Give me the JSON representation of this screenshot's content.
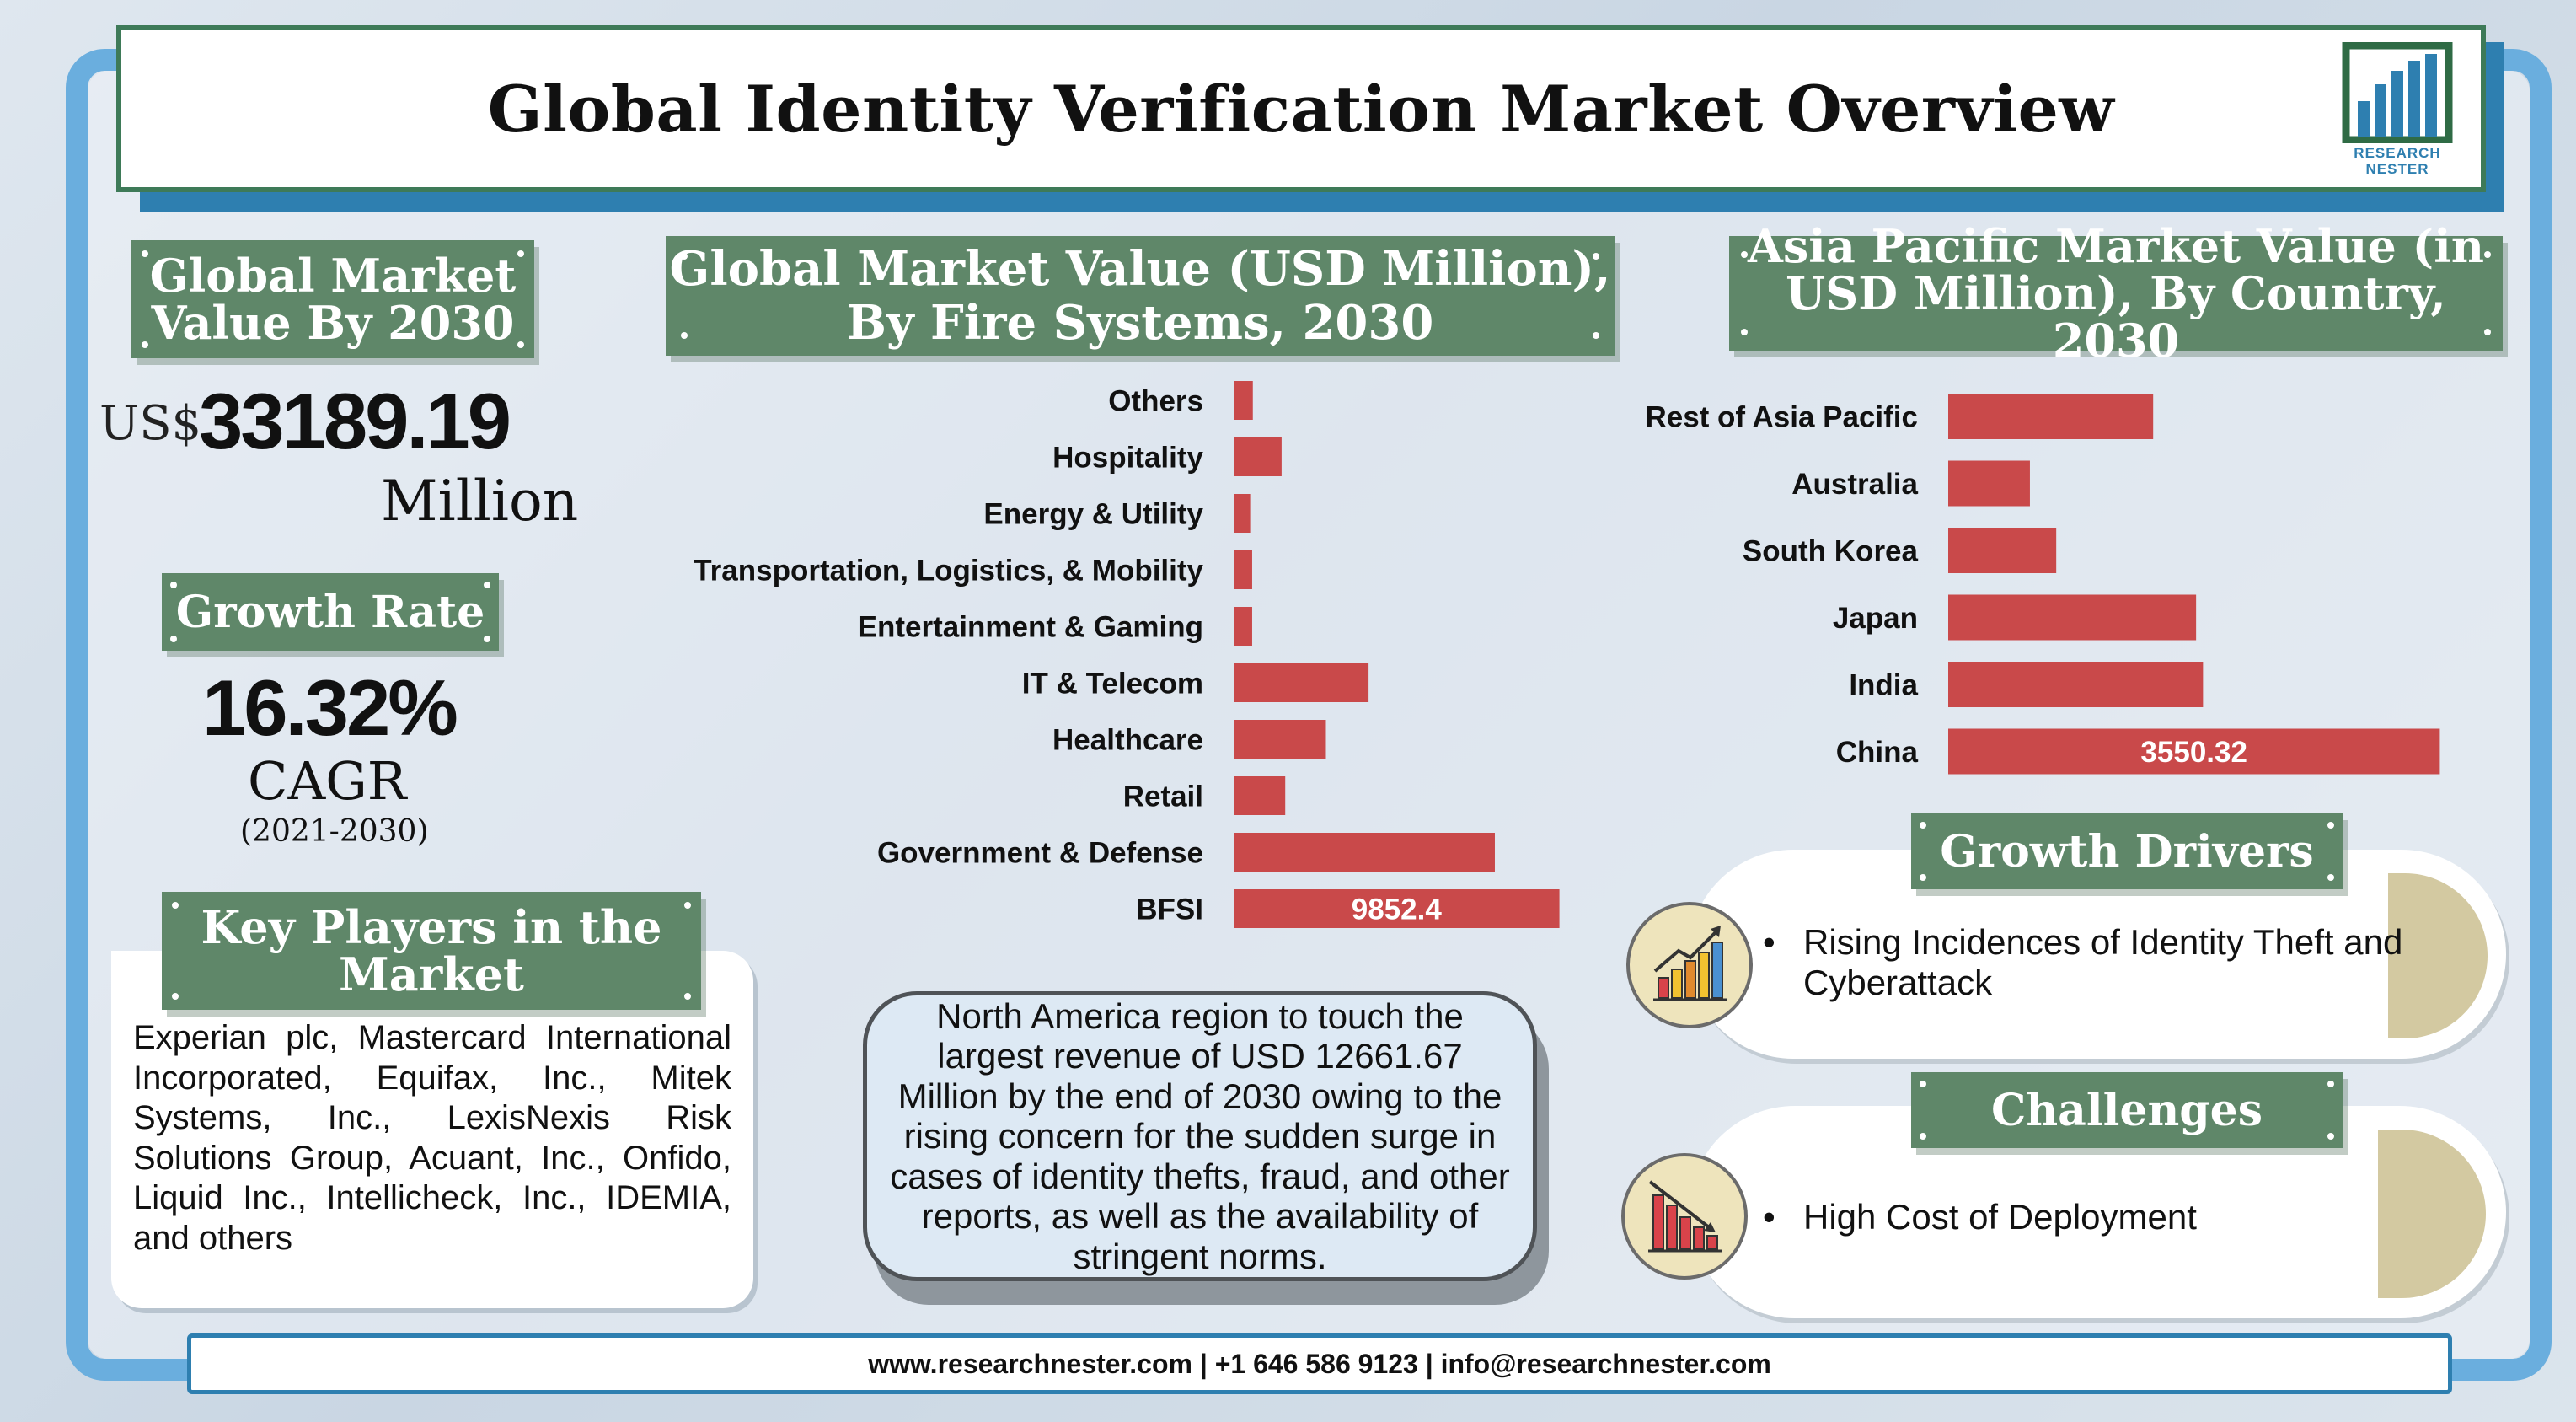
{
  "title": "Global Identity Verification Market Overview",
  "logo": {
    "text_line1": "RESEARCH",
    "text_line2": "NESTER",
    "color": "#2e7fb0"
  },
  "global_value": {
    "heading": "Global Market Value By 2030",
    "prefix": "US$",
    "value": "33189.19",
    "unit": "Million"
  },
  "growth": {
    "heading": "Growth Rate",
    "value": "16.32%",
    "label": "CAGR",
    "period": "(2021-2030)"
  },
  "key_players": {
    "heading": "Key Players in the Market",
    "text": "Experian plc, Mastercard International Incorporated, Equifax, Inc., Mitek Systems, Inc., LexisNexis Risk Solutions Group, Acuant, Inc., Onfido, Liquid Inc., Intellicheck, Inc., IDEMIA, and others"
  },
  "north_america_note": "North America region to touch the largest revenue of USD 12661.67 Million by the end of 2030 owing to the rising concern for the sudden surge in cases of identity thefts, fraud, and other reports, as well as the availability of stringent norms.",
  "growth_drivers": {
    "heading": "Growth Drivers",
    "items": [
      "Rising Incidences of Identity Theft and Cyberattack"
    ]
  },
  "challenges": {
    "heading": "Challenges",
    "items": [
      "High Cost of Deployment"
    ]
  },
  "footer": "www.researchnester.com | +1 646 586 9123 | info@researchnester.com",
  "colors": {
    "ribbon": "#5f8769",
    "bar": "#c9494a",
    "frame": "#6aaede"
  },
  "chart_data": [
    {
      "type": "bar",
      "orientation": "horizontal",
      "title": "Global Market Value (USD Million), By Fire Systems, 2030",
      "categories": [
        "Others",
        "Hospitality",
        "Energy & Utility",
        "Transportation, Logistics, & Mobility",
        "Entertainment & Gaming",
        "IT & Telecom",
        "Healthcare",
        "Retail",
        "Government & Defense",
        "BFSI"
      ],
      "values": [
        580,
        1450,
        500,
        560,
        560,
        4080,
        2790,
        1560,
        7900,
        9852.4
      ],
      "data_labels": [
        "",
        "",
        "",
        "",
        "",
        "",
        "",
        "",
        "",
        "9852.4"
      ],
      "xlim": [
        0,
        10500
      ],
      "grid": false
    },
    {
      "type": "bar",
      "orientation": "horizontal",
      "title": "Asia Pacific Market Value (in USD Million), By Country, 2030",
      "categories": [
        "Rest of Asia Pacific",
        "Australia",
        "South Korea",
        "Japan",
        "India",
        "China"
      ],
      "values": [
        1480,
        590,
        780,
        1790,
        1840,
        3550.32
      ],
      "data_labels": [
        "",
        "",
        "",
        "",
        "",
        "3550.32"
      ],
      "xlim": [
        0,
        3700
      ],
      "grid": false
    }
  ]
}
